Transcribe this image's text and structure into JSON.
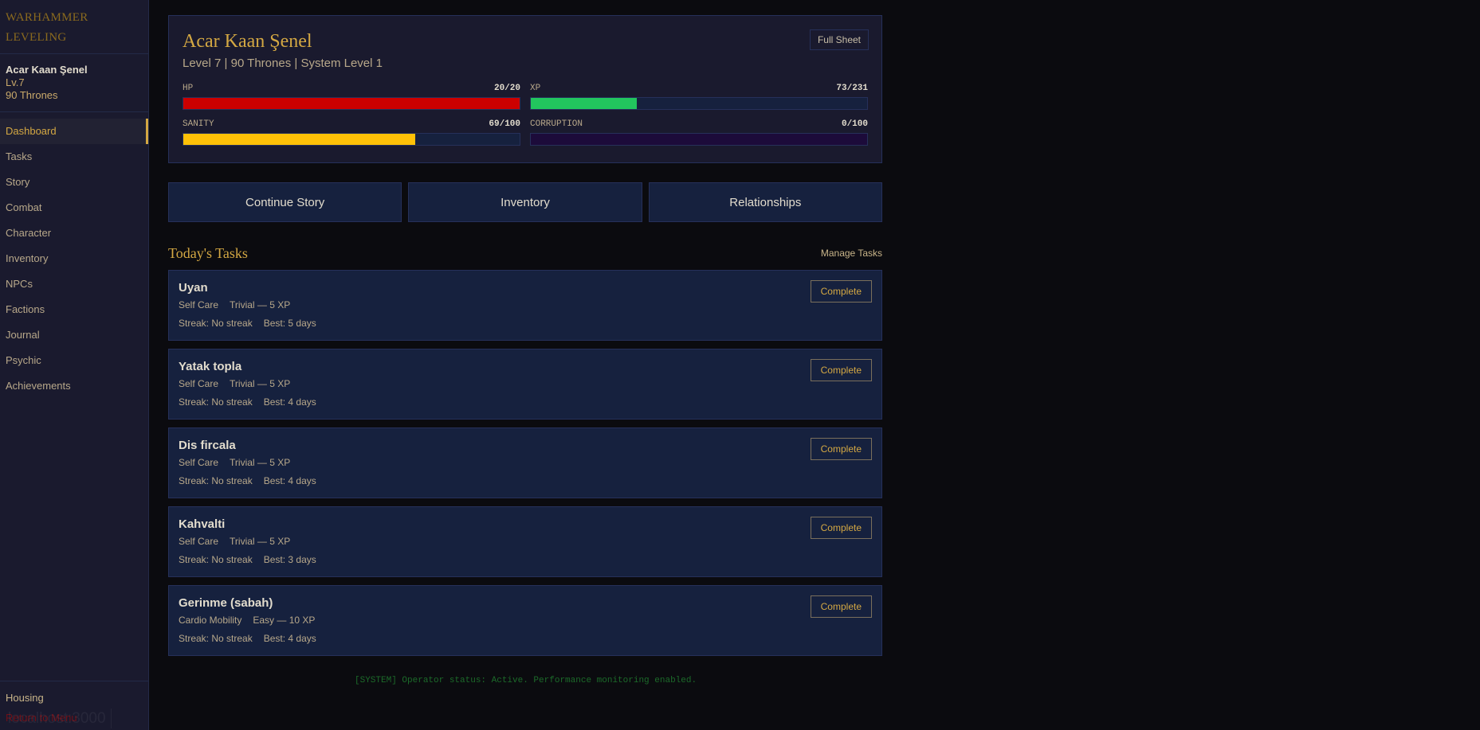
{
  "sidebar": {
    "logo": [
      "WARHAMMER",
      "LEVELING"
    ],
    "user": {
      "name": "Acar Kaan Şenel",
      "level": "Lv.7",
      "thrones": "90 Thrones"
    },
    "items": [
      {
        "label": "Dashboard",
        "active": true
      },
      {
        "label": "Tasks"
      },
      {
        "label": "Story"
      },
      {
        "label": "Combat"
      },
      {
        "label": "Character"
      },
      {
        "label": "Inventory"
      },
      {
        "label": "NPCs"
      },
      {
        "label": "Factions"
      },
      {
        "label": "Journal"
      },
      {
        "label": "Psychic"
      },
      {
        "label": "Achievements"
      }
    ],
    "housing": "Housing",
    "return": "Return to Menu",
    "status_tooltip": "localhost:3000"
  },
  "character": {
    "name": "Acar Kaan Şenel",
    "subtitle": "Level 7 | 90 Thrones | System Level 1",
    "full_sheet": "Full Sheet",
    "bars": [
      {
        "label": "HP",
        "value": "20/20",
        "percent": 100,
        "color": "#cc0000"
      },
      {
        "label": "XP",
        "value": "73/231",
        "percent": 31.6,
        "color": "#22c55e"
      },
      {
        "label": "SANITY",
        "value": "69/100",
        "percent": 69,
        "color": "#ffc107"
      },
      {
        "label": "CORRUPTION",
        "value": "0/100",
        "percent": 0,
        "color": "#6b21a8"
      }
    ]
  },
  "actions": [
    "Continue Story",
    "Inventory",
    "Relationships"
  ],
  "tasks": {
    "title": "Today's Tasks",
    "manage": "Manage Tasks",
    "complete_label": "Complete",
    "items": [
      {
        "name": "Uyan",
        "category": "Self Care",
        "difficulty": "Trivial — 5 XP",
        "streak": "Streak: No streak",
        "best": "Best: 5 days"
      },
      {
        "name": "Yatak topla",
        "category": "Self Care",
        "difficulty": "Trivial — 5 XP",
        "streak": "Streak: No streak",
        "best": "Best: 4 days"
      },
      {
        "name": "Dis fircala",
        "category": "Self Care",
        "difficulty": "Trivial — 5 XP",
        "streak": "Streak: No streak",
        "best": "Best: 4 days"
      },
      {
        "name": "Kahvalti",
        "category": "Self Care",
        "difficulty": "Trivial — 5 XP",
        "streak": "Streak: No streak",
        "best": "Best: 3 days"
      },
      {
        "name": "Gerinme (sabah)",
        "category": "Cardio Mobility",
        "difficulty": "Easy — 10 XP",
        "streak": "Streak: No streak",
        "best": "Best: 4 days"
      }
    ]
  },
  "system_message": "[SYSTEM] Operator status: Active. Performance monitoring enabled."
}
